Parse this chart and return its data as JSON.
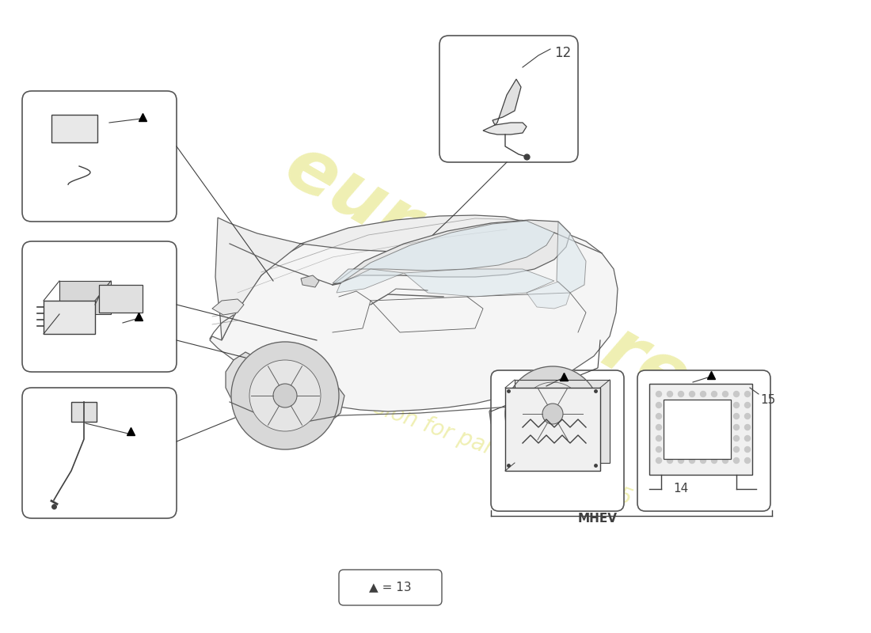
{
  "bg_color": "#ffffff",
  "line_color": "#404040",
  "box_border_color": "#555555",
  "watermark_color1": "#cccc00",
  "watermark_color2": "#cccc00",
  "watermark_alpha": 0.3,
  "legend_text": "▲ = 13",
  "part12_label": "12",
  "part14_label": "14",
  "part15_label": "15",
  "mhev_label": "MHEV",
  "car_fill": "#f5f5f5",
  "car_line": "#606060",
  "car_lw": 0.9
}
